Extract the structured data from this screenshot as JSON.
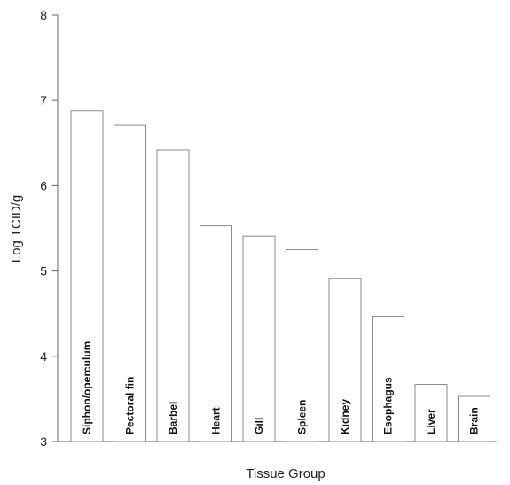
{
  "chart_data": {
    "type": "bar",
    "title": "",
    "xlabel": "Tissue Group",
    "ylabel": "Log TCID/g",
    "ylim": [
      3,
      8
    ],
    "yticks": [
      3,
      4,
      5,
      6,
      7,
      8
    ],
    "grid": false,
    "legend": "none",
    "categories": [
      "Siphon/operculum",
      "Pectoral fin",
      "Barbel",
      "Heart",
      "Gill",
      "Spleen",
      "Kidney",
      "Esophagus",
      "Liver",
      "Brain"
    ],
    "values": [
      6.88,
      6.71,
      6.42,
      5.53,
      5.41,
      5.25,
      4.91,
      4.47,
      3.67,
      3.53
    ],
    "colors": {
      "bar_fill": "#ffffff",
      "bar_stroke": "#8a8a8a",
      "axis": "#666666",
      "text": "#222222"
    }
  }
}
